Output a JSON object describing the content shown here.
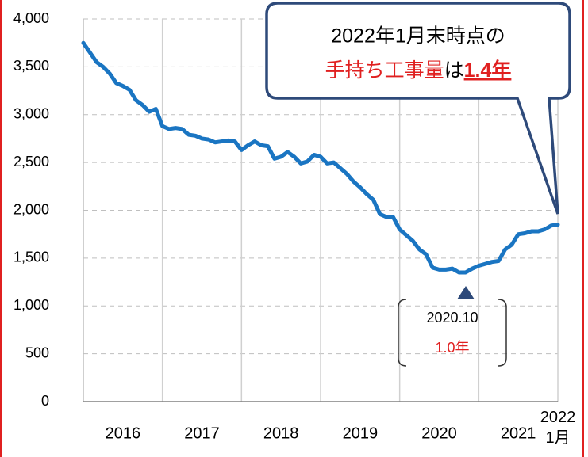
{
  "chart_data": {
    "type": "line",
    "categories": [
      null,
      null,
      null,
      null,
      null,
      null,
      "2016",
      null,
      null,
      null,
      null,
      null,
      null,
      null,
      null,
      null,
      null,
      null,
      "2017",
      null,
      null,
      null,
      null,
      null,
      null,
      null,
      null,
      null,
      null,
      null,
      "2018",
      null,
      null,
      null,
      null,
      null,
      null,
      null,
      null,
      null,
      null,
      null,
      "2019",
      null,
      null,
      null,
      null,
      null,
      null,
      null,
      null,
      null,
      null,
      null,
      "2020",
      null,
      null,
      null,
      null,
      null,
      null,
      null,
      null,
      null,
      null,
      null,
      "2021",
      null,
      null,
      null,
      null,
      null,
      "2022\n1月"
    ],
    "series": [
      {
        "color": "#1a75c2",
        "values": [
          3750,
          3650,
          3550,
          3500,
          3430,
          3330,
          3300,
          3260,
          3150,
          3100,
          3030,
          3060,
          2880,
          2850,
          2860,
          2850,
          2790,
          2780,
          2750,
          2740,
          2710,
          2720,
          2730,
          2720,
          2630,
          2680,
          2720,
          2680,
          2670,
          2540,
          2560,
          2610,
          2560,
          2490,
          2510,
          2580,
          2560,
          2490,
          2500,
          2440,
          2380,
          2300,
          2240,
          2170,
          2110,
          1960,
          1930,
          1930,
          1800,
          1740,
          1680,
          1590,
          1540,
          1400,
          1380,
          1380,
          1390,
          1350,
          1350,
          1390,
          1420,
          1440,
          1460,
          1470,
          1590,
          1640,
          1750,
          1760,
          1780,
          1780,
          1800,
          1840,
          1850
        ]
      }
    ],
    "ylim": [
      0,
      4000
    ],
    "yticks": [
      0,
      500,
      {
        "value": 1000,
        "label": "1,000"
      },
      {
        "value": 1500,
        "label": "1,500"
      },
      {
        "value": 2000,
        "label": "2,000"
      },
      {
        "value": 2500,
        "label": "2,500"
      },
      {
        "value": 3000,
        "label": "3,000"
      },
      {
        "value": 3500,
        "label": "3,500"
      },
      {
        "value": 4000,
        "label": "4,000"
      }
    ],
    "grid": true,
    "annotations": {
      "callout": {
        "line1": "2022年1月末時点の",
        "red": "手持ち工事量",
        "mid": "は",
        "bold": "1.4年"
      },
      "minimum": {
        "date": "2020.10",
        "value": "1.0年"
      }
    }
  }
}
